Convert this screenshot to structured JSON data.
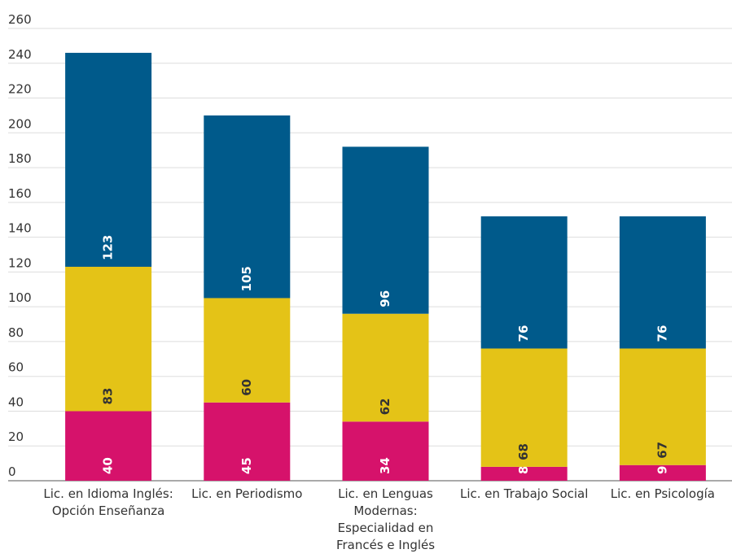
{
  "chart_data": {
    "type": "stacked_bar",
    "categories": [
      "Lic. en Idioma Inglés: Opción Enseñanza",
      "Lic. en Periodismo",
      "Lic. en Lenguas Modernas: Especialidad en Francés e Inglés",
      "Lic. en Trabajo Social",
      "Lic. en Psicología"
    ],
    "series": [
      {
        "color": "#d6126b",
        "label_color": "#ffffff",
        "values": [
          40,
          45,
          34,
          8,
          9
        ]
      },
      {
        "color": "#e4c317",
        "label_color": "#333333",
        "values": [
          83,
          60,
          62,
          68,
          67
        ]
      },
      {
        "color": "#005a8b",
        "label_color": "#ffffff",
        "values": [
          123,
          105,
          96,
          76,
          76
        ]
      }
    ],
    "ylim": [
      0,
      260
    ],
    "yticks": [
      0,
      20,
      40,
      60,
      80,
      100,
      120,
      140,
      160,
      180,
      200,
      220,
      240,
      260
    ],
    "grid": true
  }
}
